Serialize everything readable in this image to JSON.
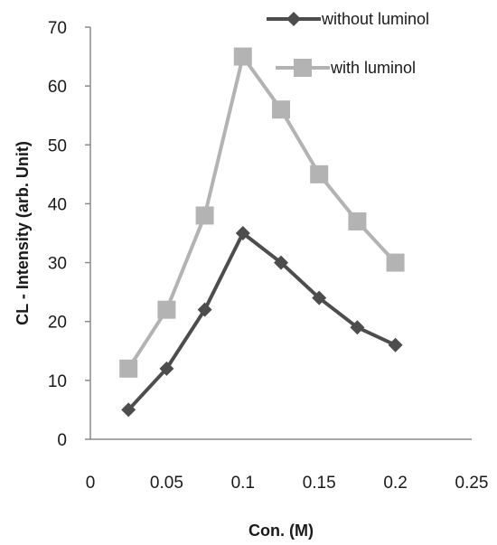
{
  "chart_data": {
    "type": "line",
    "xlabel": "Con. (M)",
    "ylabel": "CL - Intensity (arb. Unit)",
    "xlim": [
      0,
      0.25
    ],
    "ylim": [
      0,
      70
    ],
    "xticks": [
      "0",
      "0.05",
      "0.1",
      "0.15",
      "0.2",
      "0.25"
    ],
    "yticks": [
      "0",
      "10",
      "20",
      "30",
      "40",
      "50",
      "60",
      "70"
    ],
    "grid": false,
    "legend_position": "top-right",
    "series": [
      {
        "name": "without luminol",
        "marker": "diamond",
        "color": "#4d4d4d",
        "x": [
          0.025,
          0.05,
          0.075,
          0.1,
          0.125,
          0.15,
          0.175,
          0.2
        ],
        "y": [
          5,
          12,
          22,
          35,
          30,
          24,
          19,
          16
        ]
      },
      {
        "name": "with luminol",
        "marker": "square",
        "color": "#b3b3b3",
        "x": [
          0.025,
          0.05,
          0.075,
          0.1,
          0.125,
          0.15,
          0.175,
          0.2
        ],
        "y": [
          12,
          22,
          38,
          65,
          56,
          45,
          37,
          30
        ]
      }
    ]
  }
}
